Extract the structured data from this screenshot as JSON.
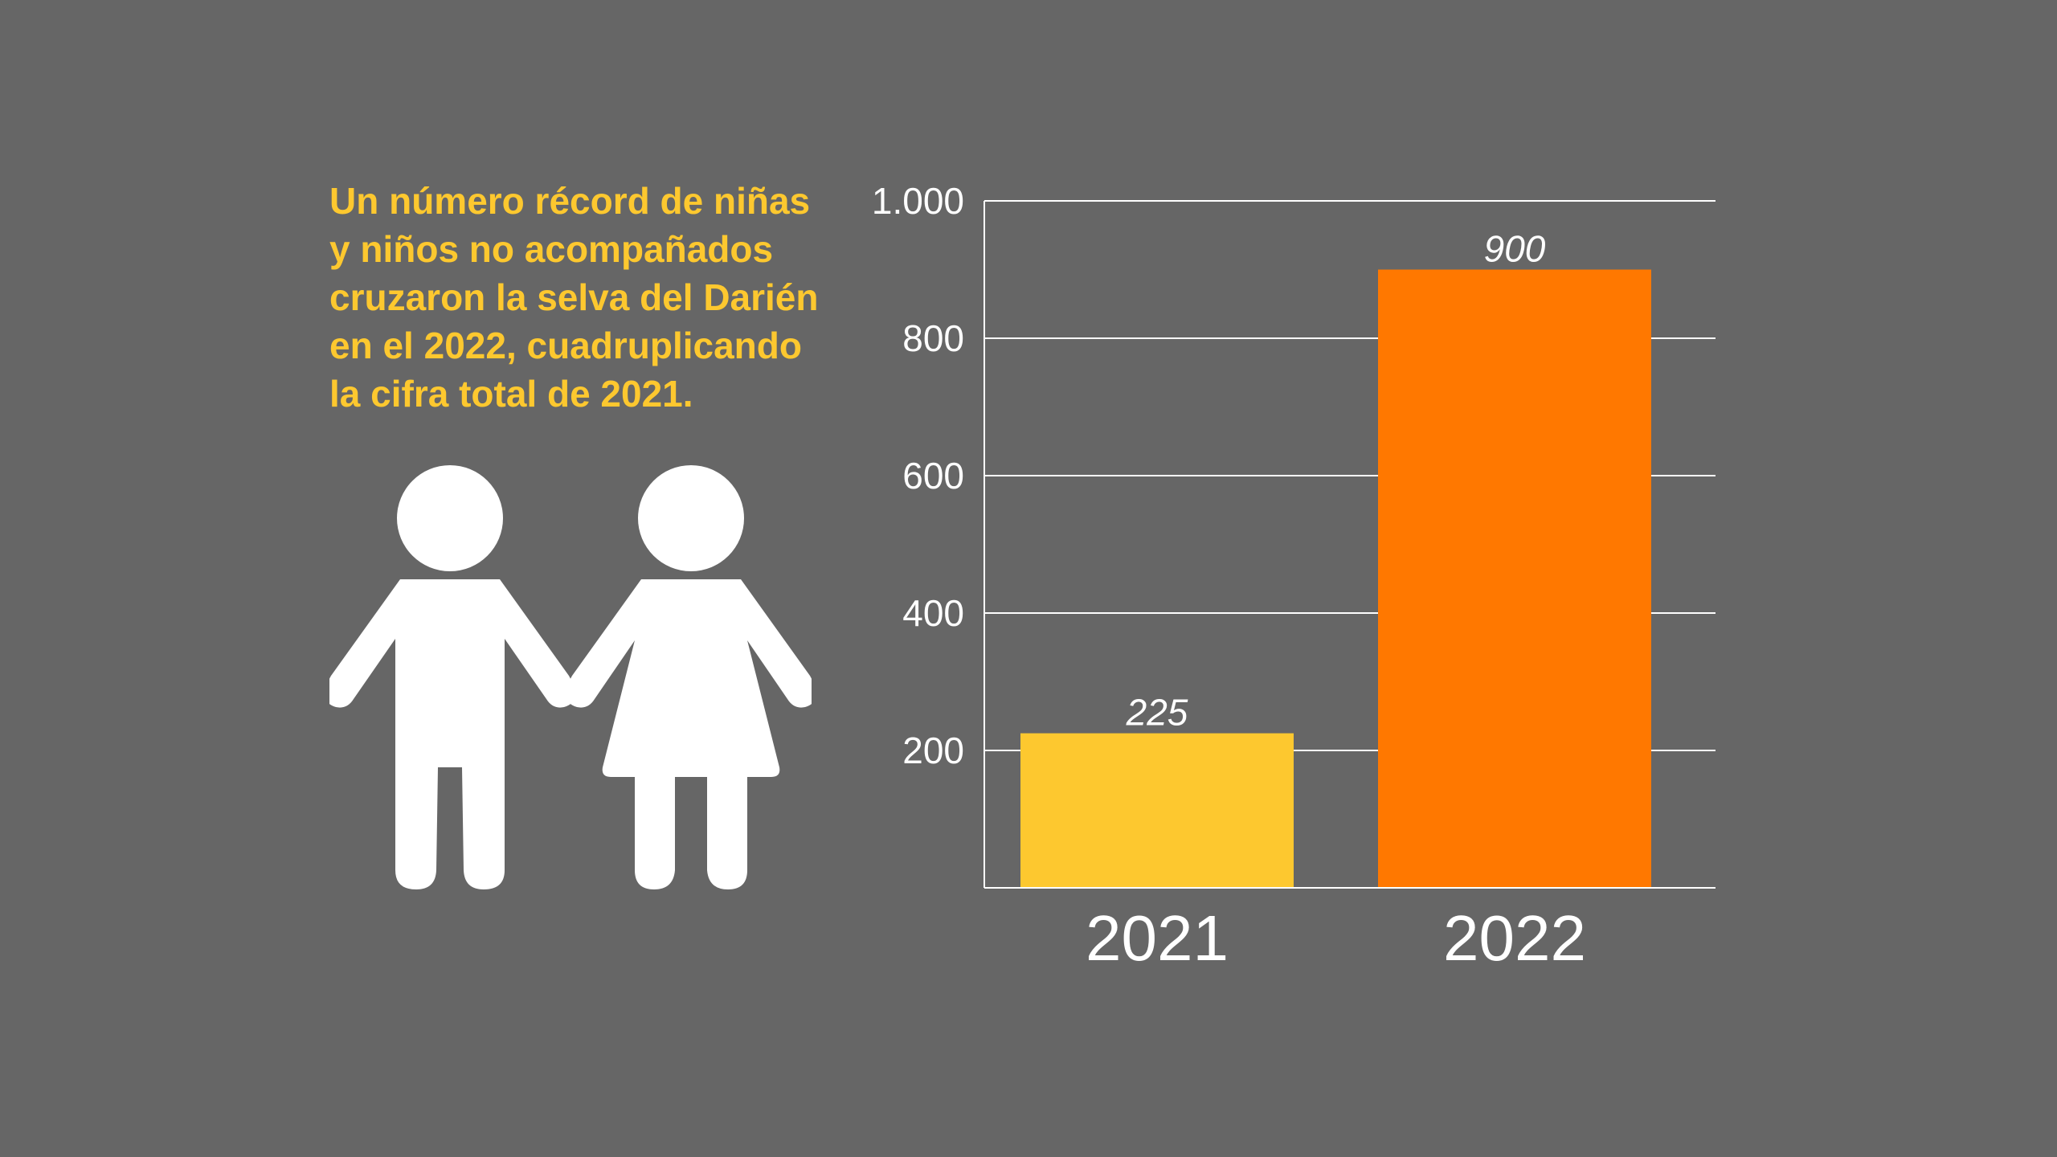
{
  "headline": {
    "lines": [
      "Un número récord de niñas",
      "y niños no acompañados",
      "cruzaron la selva del Darién",
      "en el 2022, cuadruplicando",
      "la cifra total de 2021."
    ]
  },
  "icons": [
    "boy-icon",
    "girl-icon"
  ],
  "colors": {
    "background": "#666666",
    "headline": "#FDC82F",
    "bar_2021": "#FDC82F",
    "bar_2022": "#FF7800",
    "figure": "#FFFFFF"
  },
  "chart_data": {
    "type": "bar",
    "categories": [
      "2021",
      "2022"
    ],
    "values": [
      225,
      900
    ],
    "data_labels": [
      "225",
      "900"
    ],
    "ylim": [
      0,
      1000
    ],
    "yticks": [
      200,
      400,
      600,
      800,
      1000
    ],
    "ytick_labels": [
      "200",
      "400",
      "600",
      "800",
      "1.000"
    ],
    "grid": true
  }
}
